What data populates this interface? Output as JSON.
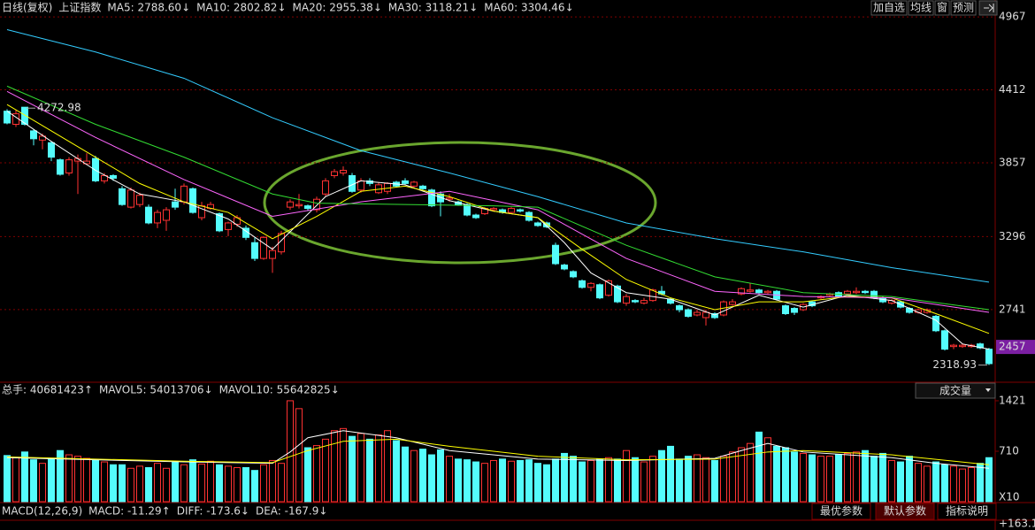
{
  "header": {
    "period": "日线(复权)",
    "symbol": "上证指数",
    "buttons": [
      "加自选",
      "均线",
      "窗",
      "预测"
    ]
  },
  "chart_data": [
    {
      "type": "candlestick",
      "up_color": "#ff3232",
      "down_color": "#54fcfc",
      "grid": true,
      "ylim": [
        2202,
        5028
      ],
      "yticks": [
        4967,
        4412,
        3857,
        3296,
        2741
      ],
      "highlight_tick": 2457,
      "high_label": 4272.98,
      "low_label": 2318.93,
      "open": [
        4250,
        4150,
        4280,
        4100,
        4030,
        4010,
        3880,
        3780,
        3870,
        3850,
        3890,
        3720,
        3760,
        3660,
        3520,
        3540,
        3520,
        3400,
        3420,
        3560,
        3560,
        3660,
        3440,
        3510,
        3470,
        3350,
        3390,
        3360,
        3250,
        3130,
        3130,
        3180,
        3520,
        3530,
        3530,
        3500,
        3620,
        3760,
        3780,
        3760,
        3650,
        3720,
        3630,
        3640,
        3710,
        3720,
        3680,
        3680,
        3650,
        3620,
        3580,
        3560,
        3540,
        3460,
        3470,
        3500,
        3500,
        3480,
        3500,
        3480,
        3400,
        3400,
        3230,
        3080,
        3030,
        2960,
        2910,
        2930,
        2850,
        2920,
        2790,
        2810,
        2790,
        2810,
        2880,
        2820,
        2770,
        2740,
        2700,
        2680,
        2710,
        2700,
        2780,
        2860,
        2880,
        2890,
        2870,
        2880,
        2770,
        2750,
        2740,
        2800,
        2830,
        2850,
        2870,
        2860,
        2870,
        2880,
        2880,
        2830,
        2790,
        2800,
        2750,
        2720,
        2720,
        2690,
        2580,
        2460,
        2460,
        2460,
        2480,
        2440
      ],
      "high": [
        4265,
        4260,
        4272.98,
        4110,
        4080,
        4020,
        3890,
        3900,
        3920,
        3930,
        3910,
        3780,
        3770,
        3680,
        3670,
        3630,
        3540,
        3500,
        3520,
        3660,
        3700,
        3670,
        3560,
        3560,
        3480,
        3410,
        3460,
        3380,
        3290,
        3300,
        3220,
        3340,
        3580,
        3620,
        3540,
        3600,
        3740,
        3810,
        3830,
        3780,
        3740,
        3740,
        3710,
        3710,
        3720,
        3740,
        3720,
        3690,
        3660,
        3640,
        3620,
        3570,
        3550,
        3470,
        3520,
        3520,
        3510,
        3520,
        3510,
        3490,
        3410,
        3410,
        3250,
        3090,
        3040,
        2970,
        2950,
        2940,
        2970,
        2930,
        2860,
        2820,
        2830,
        2900,
        2920,
        2830,
        2780,
        2750,
        2740,
        2740,
        2720,
        2810,
        2820,
        2910,
        2940,
        2900,
        2890,
        2890,
        2780,
        2760,
        2790,
        2810,
        2850,
        2870,
        2880,
        2890,
        2910,
        2890,
        2890,
        2840,
        2820,
        2810,
        2760,
        2750,
        2750,
        2700,
        2590,
        2480,
        2480,
        2480,
        2490,
        2450
      ],
      "low": [
        4150,
        4130,
        4140,
        3990,
        3960,
        3870,
        3760,
        3760,
        3620,
        3840,
        3710,
        3700,
        3720,
        3530,
        3510,
        3520,
        3390,
        3360,
        3340,
        3500,
        3540,
        3470,
        3420,
        3500,
        3330,
        3300,
        3370,
        3270,
        3110,
        3120,
        3020,
        3160,
        3500,
        3510,
        3490,
        3480,
        3600,
        3740,
        3760,
        3630,
        3630,
        3680,
        3620,
        3620,
        3670,
        3690,
        3670,
        3650,
        3520,
        3450,
        3560,
        3530,
        3450,
        3430,
        3460,
        3490,
        3470,
        3470,
        3480,
        3410,
        3370,
        3360,
        3080,
        3040,
        2980,
        2900,
        2880,
        2820,
        2840,
        2790,
        2770,
        2790,
        2780,
        2800,
        2850,
        2780,
        2720,
        2680,
        2690,
        2620,
        2670,
        2690,
        2770,
        2850,
        2870,
        2860,
        2860,
        2810,
        2700,
        2700,
        2730,
        2760,
        2820,
        2840,
        2830,
        2850,
        2860,
        2860,
        2820,
        2790,
        2780,
        2750,
        2710,
        2710,
        2710,
        2570,
        2430,
        2440,
        2450,
        2450,
        2440,
        2318.93
      ],
      "close": [
        4160,
        4230,
        4150,
        4040,
        4060,
        3900,
        3770,
        3880,
        3890,
        3870,
        3720,
        3760,
        3740,
        3540,
        3650,
        3610,
        3400,
        3480,
        3500,
        3520,
        3680,
        3480,
        3530,
        3540,
        3340,
        3400,
        3440,
        3290,
        3130,
        3290,
        3190,
        3320,
        3560,
        3540,
        3510,
        3580,
        3720,
        3790,
        3800,
        3640,
        3720,
        3700,
        3690,
        3700,
        3680,
        3700,
        3710,
        3660,
        3530,
        3560,
        3590,
        3540,
        3460,
        3440,
        3510,
        3510,
        3480,
        3510,
        3490,
        3420,
        3380,
        3370,
        3090,
        3050,
        2990,
        2910,
        2940,
        2830,
        2960,
        2800,
        2840,
        2800,
        2810,
        2890,
        2860,
        2790,
        2740,
        2690,
        2720,
        2720,
        2680,
        2800,
        2800,
        2900,
        2890,
        2870,
        2880,
        2820,
        2710,
        2720,
        2780,
        2770,
        2840,
        2860,
        2840,
        2880,
        2880,
        2870,
        2830,
        2800,
        2810,
        2760,
        2720,
        2740,
        2740,
        2580,
        2440,
        2470,
        2470,
        2470,
        2450,
        2330
      ],
      "series": [
        {
          "name": "MA5: 2788.60↓",
          "color": "#ffffff",
          "x": [
            0,
            5,
            10,
            15,
            20,
            25,
            30,
            33,
            36,
            40,
            45,
            50,
            55,
            60,
            63,
            66,
            70,
            75,
            80,
            85,
            90,
            95,
            100,
            105,
            108,
            111
          ],
          "values": [
            4250,
            4020,
            3800,
            3620,
            3560,
            3430,
            3200,
            3400,
            3600,
            3720,
            3690,
            3570,
            3490,
            3440,
            3250,
            3020,
            2870,
            2820,
            2700,
            2850,
            2760,
            2850,
            2810,
            2660,
            2480,
            2440
          ]
        },
        {
          "name": "MA10: 2802.82↓",
          "color": "#ffff00",
          "x": [
            0,
            5,
            10,
            15,
            20,
            25,
            30,
            35,
            40,
            45,
            50,
            55,
            60,
            65,
            70,
            75,
            80,
            85,
            90,
            95,
            100,
            105,
            111
          ],
          "values": [
            4300,
            4100,
            3900,
            3700,
            3560,
            3480,
            3280,
            3450,
            3640,
            3680,
            3600,
            3490,
            3440,
            3200,
            2970,
            2830,
            2740,
            2800,
            2800,
            2840,
            2830,
            2710,
            2560
          ]
        },
        {
          "name": "MA20: 2955.38↓",
          "color": "#ff66ff",
          "x": [
            0,
            10,
            20,
            30,
            40,
            50,
            60,
            70,
            80,
            90,
            100,
            111
          ],
          "values": [
            4400,
            4050,
            3730,
            3450,
            3560,
            3640,
            3500,
            3130,
            2880,
            2840,
            2830,
            2720
          ]
        },
        {
          "name": "MA30: 3118.21↓",
          "color": "#33dd33",
          "x": [
            0,
            10,
            20,
            30,
            35,
            45,
            55,
            60,
            70,
            80,
            90,
            100,
            111
          ],
          "values": [
            4440,
            4150,
            3900,
            3620,
            3550,
            3540,
            3530,
            3520,
            3230,
            2990,
            2870,
            2840,
            2740
          ]
        },
        {
          "name": "MA60: 3304.46↓",
          "color": "#33ccff",
          "x": [
            0,
            10,
            20,
            30,
            40,
            50,
            60,
            70,
            80,
            90,
            100,
            111
          ],
          "values": [
            4870,
            4700,
            4500,
            4200,
            3950,
            3780,
            3600,
            3400,
            3280,
            3180,
            3060,
            2950
          ]
        }
      ]
    },
    {
      "type": "bar",
      "total": "总手: 40681423↑",
      "indicator_menu": "成交量",
      "unit_label": "X10",
      "ylim": [
        0,
        1520
      ],
      "yticks": [
        1421,
        710
      ],
      "values": [
        650,
        620,
        700,
        590,
        540,
        600,
        720,
        660,
        640,
        610,
        580,
        560,
        520,
        520,
        470,
        500,
        480,
        540,
        470,
        560,
        520,
        590,
        530,
        570,
        520,
        500,
        480,
        480,
        440,
        520,
        580,
        540,
        1421,
        1310,
        760,
        790,
        880,
        1000,
        1030,
        920,
        960,
        880,
        940,
        1000,
        860,
        770,
        720,
        740,
        660,
        730,
        640,
        600,
        590,
        560,
        540,
        580,
        600,
        570,
        580,
        590,
        540,
        520,
        600,
        680,
        640,
        560,
        580,
        600,
        620,
        600,
        720,
        620,
        560,
        640,
        720,
        780,
        600,
        640,
        660,
        620,
        580,
        640,
        700,
        760,
        820,
        980,
        900,
        780,
        760,
        700,
        680,
        660,
        640,
        640,
        660,
        680,
        700,
        720,
        640,
        680,
        580,
        560,
        640,
        540,
        500,
        560,
        520,
        500,
        460,
        480,
        540,
        620
      ],
      "series": [
        {
          "name": "MAVOL5: 54013706↓",
          "color": "#ffffff",
          "x": [
            0,
            10,
            20,
            30,
            32,
            34,
            38,
            44,
            50,
            60,
            70,
            80,
            83,
            86,
            90,
            95,
            100,
            105,
            111
          ],
          "values": [
            620,
            590,
            560,
            540,
            700,
            900,
            1000,
            900,
            720,
            600,
            580,
            610,
            720,
            820,
            700,
            660,
            620,
            540,
            470
          ]
        },
        {
          "name": "MAVOL10: 55642825↓",
          "color": "#ffff00",
          "x": [
            0,
            10,
            20,
            30,
            34,
            38,
            44,
            50,
            60,
            70,
            80,
            86,
            90,
            100,
            111
          ],
          "values": [
            630,
            600,
            570,
            550,
            720,
            850,
            880,
            780,
            640,
            590,
            600,
            700,
            720,
            660,
            520
          ]
        }
      ]
    }
  ],
  "macd": {
    "items": [
      "MACD(12,26,9)",
      "MACD: -11.29↑",
      "DIFF: -173.6↓",
      "DEA: -167.9↓"
    ],
    "buttons": [
      "最优参数",
      "默认参数",
      "指标说明"
    ],
    "scale_label": "+163.1"
  }
}
